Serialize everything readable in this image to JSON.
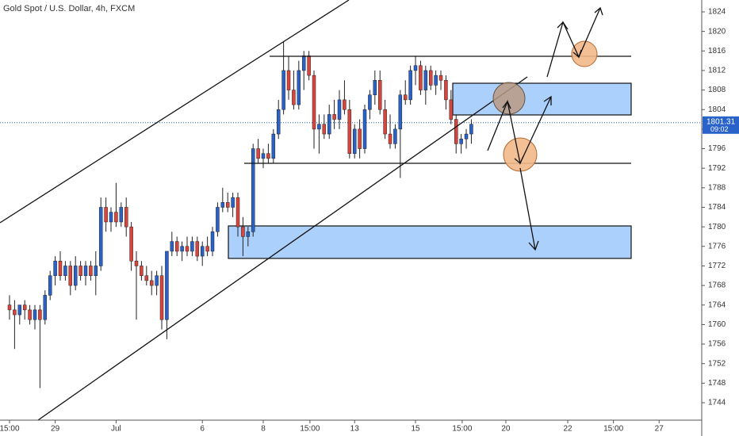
{
  "chart_data": {
    "type": "candlestick",
    "title": "Gold Spot / U.S. Dollar, 4h, FXCM",
    "up_color": "#2962c8",
    "down_color": "#d9453d",
    "xlim": [
      -1.875,
      136.4
    ],
    "xticks": [
      {
        "value": 0,
        "label": "15:00"
      },
      {
        "value": 9,
        "label": "29"
      },
      {
        "value": 21,
        "label": "Jul"
      },
      {
        "value": 38,
        "label": "6"
      },
      {
        "value": 50,
        "label": "8"
      },
      {
        "value": 59.2,
        "label": "15:00"
      },
      {
        "value": 68,
        "label": "13"
      },
      {
        "value": 80,
        "label": "15"
      },
      {
        "value": 89.2,
        "label": "15:00"
      },
      {
        "value": 97.8,
        "label": "20"
      },
      {
        "value": 110,
        "label": "22"
      },
      {
        "value": 119,
        "label": "15:00"
      },
      {
        "value": 128,
        "label": "27"
      }
    ],
    "ylim": [
      1740.43,
      1826.43
    ],
    "yticks": [
      1744,
      1748,
      1752,
      1756,
      1760,
      1764,
      1768,
      1772,
      1776,
      1780,
      1784,
      1788,
      1792,
      1796,
      1800,
      1804,
      1808,
      1812,
      1816,
      1820,
      1824
    ],
    "last_price": 1801.31,
    "countdown": "09:02",
    "candles": [
      [
        1764,
        1766,
        1761,
        1763
      ],
      [
        1763,
        1765,
        1755,
        1762
      ],
      [
        1762,
        1764,
        1760,
        1764
      ],
      [
        1764,
        1765,
        1761,
        1763
      ],
      [
        1763,
        1764,
        1760,
        1761
      ],
      [
        1761,
        1764,
        1759,
        1763
      ],
      [
        1763,
        1764,
        1747,
        1761
      ],
      [
        1761,
        1767,
        1760,
        1766
      ],
      [
        1766,
        1771,
        1765,
        1770
      ],
      [
        1770,
        1774,
        1768,
        1773
      ],
      [
        1773,
        1775,
        1769,
        1770
      ],
      [
        1770,
        1773,
        1769,
        1772
      ],
      [
        1772,
        1773,
        1766,
        1768
      ],
      [
        1768,
        1774,
        1767,
        1772
      ],
      [
        1772,
        1773,
        1769,
        1770
      ],
      [
        1770,
        1773,
        1768,
        1772
      ],
      [
        1772,
        1773,
        1769,
        1770
      ],
      [
        1770,
        1775,
        1766,
        1772
      ],
      [
        1772,
        1786,
        1771,
        1784
      ],
      [
        1784,
        1786,
        1779,
        1781
      ],
      [
        1781,
        1784,
        1779,
        1783
      ],
      [
        1783,
        1789,
        1780,
        1781
      ],
      [
        1781,
        1785,
        1780,
        1784
      ],
      [
        1784,
        1786,
        1778,
        1780
      ],
      [
        1780,
        1781,
        1771,
        1773
      ],
      [
        1773,
        1775,
        1761,
        1772
      ],
      [
        1772,
        1773,
        1769,
        1770
      ],
      [
        1770,
        1772,
        1768,
        1769
      ],
      [
        1769,
        1771,
        1766,
        1768
      ],
      [
        1768,
        1771,
        1766,
        1770
      ],
      [
        1770,
        1772,
        1759,
        1761
      ],
      [
        1761,
        1775,
        1757,
        1775
      ],
      [
        1775,
        1779,
        1774,
        1777
      ],
      [
        1777,
        1778,
        1774,
        1775
      ],
      [
        1775,
        1777,
        1773,
        1776
      ],
      [
        1776,
        1778,
        1774,
        1775
      ],
      [
        1775,
        1778,
        1774,
        1777
      ],
      [
        1777,
        1778,
        1773,
        1774
      ],
      [
        1774,
        1777,
        1772,
        1776
      ],
      [
        1776,
        1778,
        1774,
        1775
      ],
      [
        1775,
        1780,
        1774,
        1779
      ],
      [
        1779,
        1785,
        1778,
        1784
      ],
      [
        1784,
        1788,
        1783,
        1785
      ],
      [
        1785,
        1787,
        1783,
        1784
      ],
      [
        1784,
        1787,
        1782,
        1786
      ],
      [
        1786,
        1787,
        1778,
        1780
      ],
      [
        1780,
        1782,
        1774,
        1778
      ],
      [
        1778,
        1780,
        1776,
        1779
      ],
      [
        1779,
        1797,
        1778,
        1796
      ],
      [
        1796,
        1798,
        1793,
        1794
      ],
      [
        1794,
        1796,
        1792,
        1795
      ],
      [
        1795,
        1797,
        1793,
        1794
      ],
      [
        1794,
        1800,
        1793,
        1799
      ],
      [
        1799,
        1806,
        1798,
        1804
      ],
      [
        1804,
        1818,
        1803,
        1812
      ],
      [
        1812,
        1815,
        1806,
        1808
      ],
      [
        1808,
        1812,
        1804,
        1805
      ],
      [
        1805,
        1814,
        1804,
        1812
      ],
      [
        1812,
        1816,
        1808,
        1815
      ],
      [
        1815,
        1816,
        1810,
        1811
      ],
      [
        1811,
        1812,
        1796,
        1800
      ],
      [
        1800,
        1803,
        1795,
        1801
      ],
      [
        1801,
        1803,
        1798,
        1799
      ],
      [
        1799,
        1805,
        1798,
        1803
      ],
      [
        1803,
        1806,
        1800,
        1802
      ],
      [
        1802,
        1808,
        1800,
        1806
      ],
      [
        1806,
        1810,
        1803,
        1804
      ],
      [
        1804,
        1806,
        1794,
        1795
      ],
      [
        1795,
        1801,
        1794,
        1800
      ],
      [
        1800,
        1802,
        1794,
        1796
      ],
      [
        1796,
        1805,
        1795,
        1804
      ],
      [
        1804,
        1808,
        1802,
        1807
      ],
      [
        1807,
        1812,
        1805,
        1810
      ],
      [
        1810,
        1812,
        1803,
        1804
      ],
      [
        1804,
        1806,
        1798,
        1799
      ],
      [
        1799,
        1803,
        1796,
        1797
      ],
      [
        1797,
        1801,
        1796,
        1800
      ],
      [
        1800,
        1808,
        1790,
        1807
      ],
      [
        1807,
        1810,
        1805,
        1806
      ],
      [
        1806,
        1813,
        1805,
        1812
      ],
      [
        1812,
        1815,
        1809,
        1813
      ],
      [
        1813,
        1814,
        1807,
        1808
      ],
      [
        1808,
        1813,
        1805,
        1812
      ],
      [
        1812,
        1813,
        1808,
        1809
      ],
      [
        1809,
        1812,
        1807,
        1811
      ],
      [
        1811,
        1812,
        1808,
        1810
      ],
      [
        1810,
        1811,
        1804,
        1806
      ],
      [
        1806,
        1808,
        1801,
        1802
      ],
      [
        1802,
        1803,
        1795,
        1797
      ],
      [
        1797,
        1799,
        1795,
        1798
      ],
      [
        1798,
        1800,
        1796,
        1799
      ],
      [
        1799,
        1802,
        1797,
        1801
      ]
    ]
  }
}
